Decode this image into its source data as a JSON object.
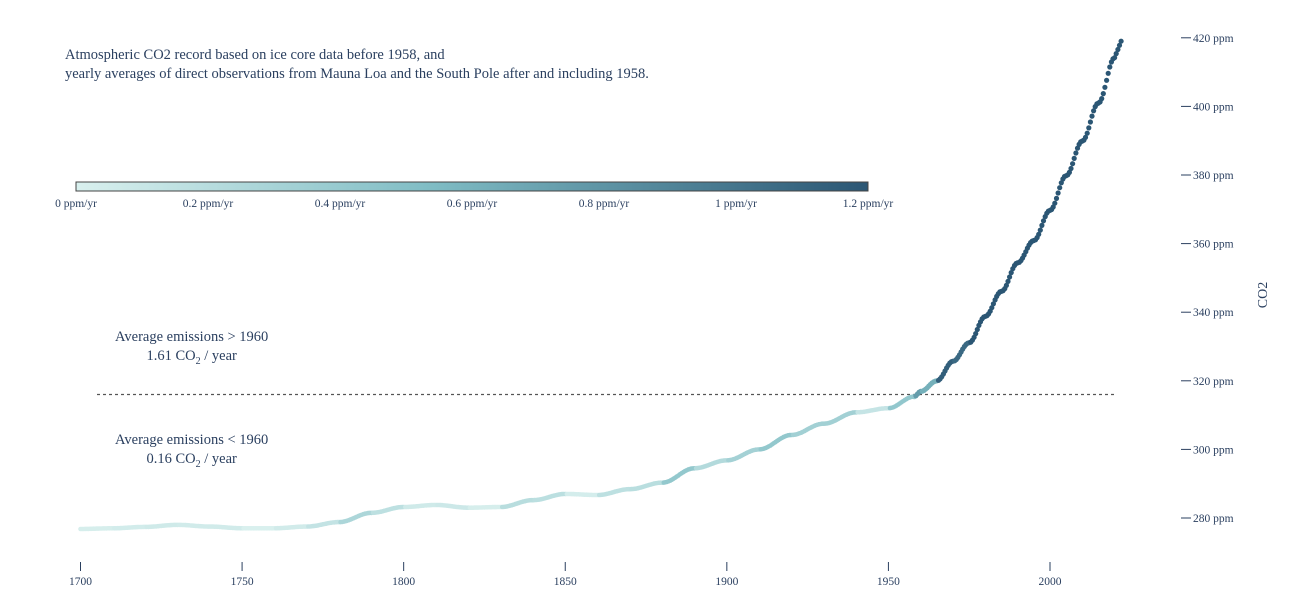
{
  "caption": {
    "line1": "Atmospheric CO2 record based on ice core data before 1958, and",
    "line2": "yearly averages of direct observations from Mauna Loa and the South Pole after and including 1958."
  },
  "annotations": {
    "above": {
      "line1": "Average emissions > 1960",
      "value": "1.61",
      "unit_prefix": "CO",
      "subscript": "2",
      "unit_suffix": " / year"
    },
    "below": {
      "line1": "Average emissions < 1960",
      "value": "0.16",
      "unit_prefix": "CO",
      "subscript": "2",
      "unit_suffix": " / year"
    }
  },
  "colors": {
    "text": "#2a3f5f",
    "scale_low": "#d9f0ee",
    "scale_mid": "#7fbcc4",
    "scale_high": "#2b5674",
    "reference_line": "#555555"
  },
  "chart_data": {
    "type": "scatter",
    "xlabel": "",
    "ylabel": "CO2",
    "xticks": [
      1700,
      1750,
      1800,
      1850,
      1900,
      1950,
      2000
    ],
    "xtick_labels": [
      "1700",
      "1750",
      "1800",
      "1850",
      "1900",
      "1950",
      "2000"
    ],
    "yticks": [
      280,
      300,
      320,
      340,
      360,
      380,
      400,
      420
    ],
    "ytick_labels": [
      "280 ppm",
      "300 ppm",
      "320 ppm",
      "340 ppm",
      "360 ppm",
      "380 ppm",
      "400 ppm",
      "420 ppm"
    ],
    "xlim": [
      1700,
      2022
    ],
    "ylim": [
      270,
      420
    ],
    "reference_line_y": 316,
    "colorbar": {
      "range": [
        0,
        1.2
      ],
      "ticks": [
        0,
        0.2,
        0.4,
        0.6,
        0.8,
        1,
        1.2
      ],
      "tick_labels": [
        "0 ppm/yr",
        "0.2 ppm/yr",
        "0.4 ppm/yr",
        "0.6 ppm/yr",
        "0.8 ppm/yr",
        "1 ppm/yr",
        "1.2 ppm/yr"
      ]
    },
    "series": [
      {
        "x": [
          1700,
          1710,
          1720,
          1730,
          1740,
          1750,
          1760,
          1770,
          1780,
          1790,
          1800,
          1810,
          1820,
          1830,
          1840,
          1850,
          1860,
          1870,
          1880,
          1890,
          1900,
          1910,
          1920,
          1930,
          1940,
          1950,
          1958,
          1960,
          1965,
          1970,
          1975,
          1980,
          1985,
          1990,
          1995,
          2000,
          2005,
          2010,
          2015,
          2020
        ],
        "y": [
          276.8,
          277.0,
          277.4,
          278.0,
          277.5,
          277.0,
          277.0,
          277.5,
          278.8,
          281.5,
          283.2,
          283.8,
          283.0,
          283.2,
          285.2,
          287.0,
          286.7,
          288.4,
          290.3,
          294.5,
          296.8,
          300.0,
          304.2,
          307.5,
          310.8,
          312.0,
          315.4,
          316.9,
          320.0,
          325.7,
          331.1,
          338.8,
          346.1,
          354.4,
          360.9,
          369.7,
          379.8,
          389.9,
          401.0,
          414.2
        ]
      }
    ]
  }
}
